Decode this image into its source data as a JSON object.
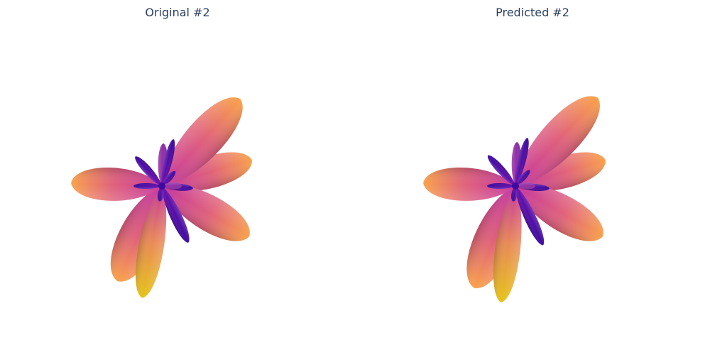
{
  "panels": [
    {
      "title": "Original #2",
      "petals": [
        {
          "angle": -16,
          "length": 132,
          "width": 56,
          "tint": "orange"
        },
        {
          "angle": -48,
          "length": 165,
          "width": 66,
          "tint": "orange"
        },
        {
          "angle": 30,
          "length": 142,
          "width": 62,
          "tint": "orange"
        },
        {
          "angle": 115,
          "length": 148,
          "width": 68,
          "tint": "orange"
        },
        {
          "angle": 100,
          "length": 160,
          "width": 44,
          "tint": "yellow"
        },
        {
          "angle": 182,
          "length": 128,
          "width": 58,
          "tint": "orange"
        },
        {
          "angle": -88,
          "length": 60,
          "width": 16,
          "tint": "mid"
        },
        {
          "angle": -76,
          "length": 68,
          "width": 14,
          "tint": "deep"
        },
        {
          "angle": -132,
          "length": 56,
          "width": 14,
          "tint": "deep"
        },
        {
          "angle": -48,
          "length": 28,
          "width": 10,
          "tint": "deep"
        },
        {
          "angle": 4,
          "length": 44,
          "width": 12,
          "tint": "deep"
        },
        {
          "angle": 65,
          "length": 88,
          "width": 20,
          "tint": "deep"
        },
        {
          "angle": 98,
          "length": 22,
          "width": 10,
          "tint": "deep"
        },
        {
          "angle": 180,
          "length": 40,
          "width": 10,
          "tint": "deep"
        },
        {
          "angle": 0,
          "length": 28,
          "width": 12,
          "tint": "mid"
        }
      ]
    },
    {
      "title": "Predicted #2",
      "petals": [
        {
          "angle": -16,
          "length": 132,
          "width": 56,
          "tint": "orange"
        },
        {
          "angle": -47,
          "length": 170,
          "width": 66,
          "tint": "orange"
        },
        {
          "angle": 30,
          "length": 142,
          "width": 62,
          "tint": "orange"
        },
        {
          "angle": 112,
          "length": 155,
          "width": 68,
          "tint": "orange"
        },
        {
          "angle": 97,
          "length": 165,
          "width": 44,
          "tint": "yellow"
        },
        {
          "angle": 182,
          "length": 130,
          "width": 58,
          "tint": "orange"
        },
        {
          "angle": -88,
          "length": 62,
          "width": 16,
          "tint": "mid"
        },
        {
          "angle": -76,
          "length": 70,
          "width": 14,
          "tint": "deep"
        },
        {
          "angle": -132,
          "length": 58,
          "width": 14,
          "tint": "deep"
        },
        {
          "angle": -48,
          "length": 30,
          "width": 10,
          "tint": "deep"
        },
        {
          "angle": 4,
          "length": 48,
          "width": 12,
          "tint": "deep"
        },
        {
          "angle": 65,
          "length": 92,
          "width": 20,
          "tint": "deep"
        },
        {
          "angle": 98,
          "length": 22,
          "width": 10,
          "tint": "deep"
        },
        {
          "angle": 180,
          "length": 40,
          "width": 10,
          "tint": "deep"
        },
        {
          "angle": 0,
          "length": 28,
          "width": 12,
          "tint": "mid"
        }
      ]
    }
  ],
  "colors": {
    "title": "#2a3f5f",
    "tip": "#f9a24b",
    "base": "#c537a0",
    "yellow": "#e5c317",
    "deep": "#3d0aa0",
    "deep_light": "#6a10ad",
    "mid": "#a02fa0"
  }
}
